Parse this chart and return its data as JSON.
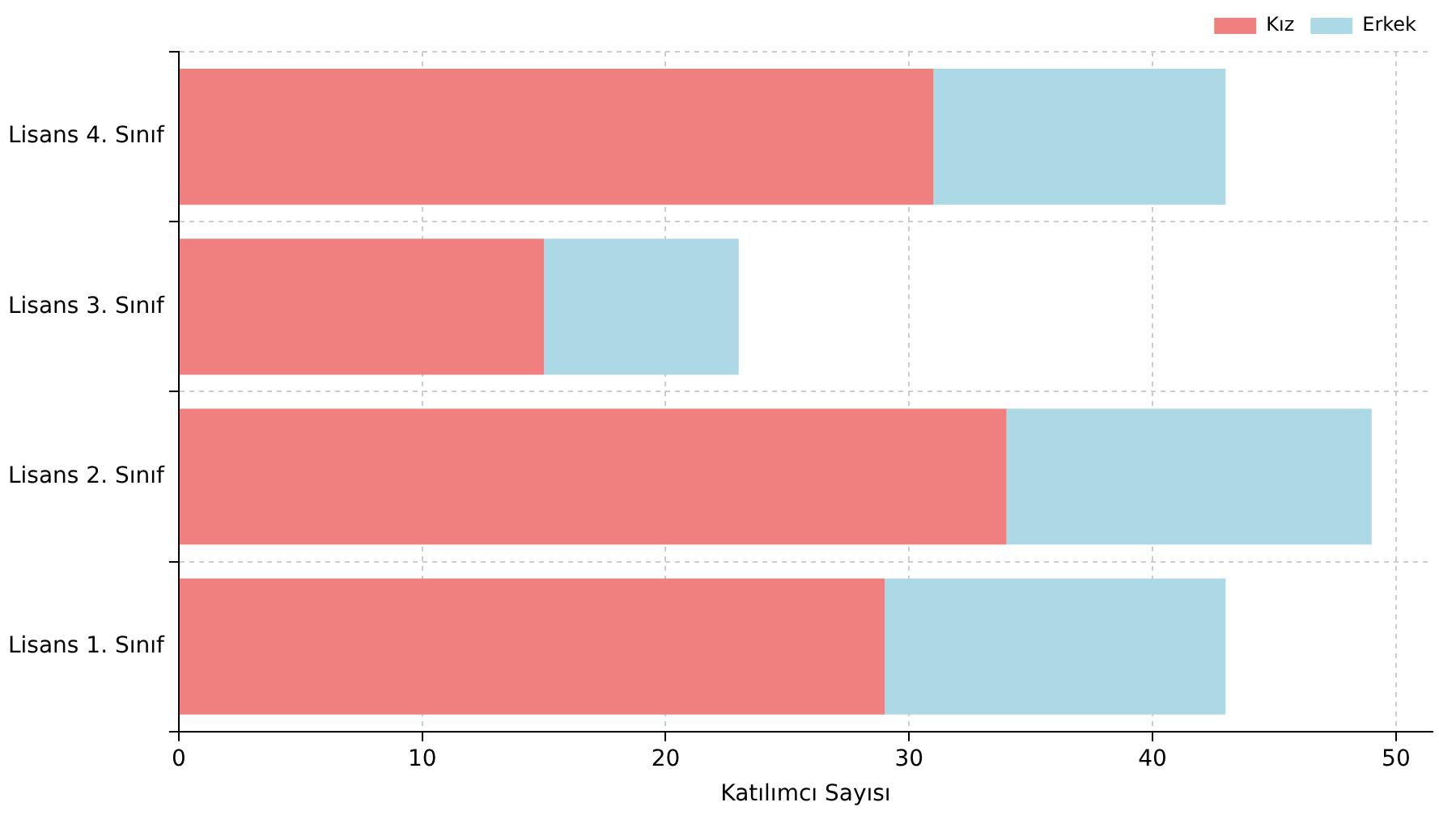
{
  "chart_data": {
    "type": "bar",
    "orientation": "horizontal",
    "stacked": true,
    "xlabel": "Katılımcı Sayısı",
    "categories": [
      "Lisans 4. Sınıf",
      "Lisans 3. Sınıf",
      "Lisans 2. Sınıf",
      "Lisans 1. Sınıf"
    ],
    "series": [
      {
        "name": "Kız",
        "color": "#f08080",
        "values": [
          31,
          15,
          34,
          29
        ]
      },
      {
        "name": "Erkek",
        "color": "#add8e6",
        "values": [
          12,
          8,
          15,
          14
        ]
      }
    ],
    "xlim": [
      0,
      51.5
    ],
    "xticks": [
      0,
      10,
      20,
      30,
      40,
      50
    ],
    "grid": true,
    "legend": "top right"
  }
}
